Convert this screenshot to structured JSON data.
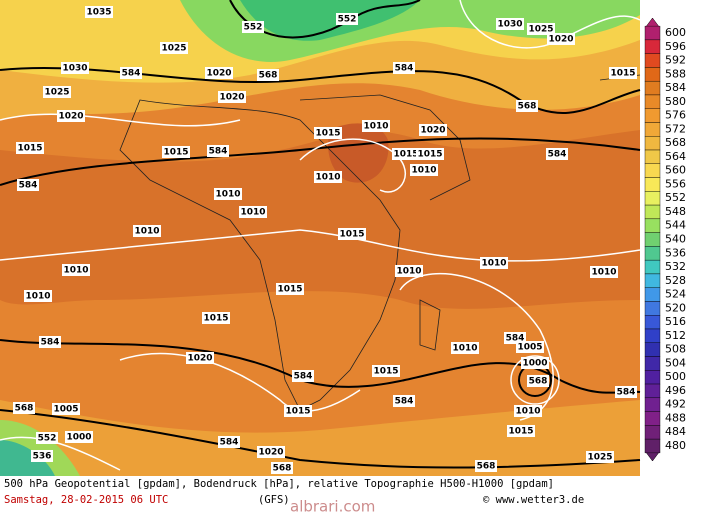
{
  "map": {
    "caption": "500 hPa Geopotential [gpdam], Bodendruck [hPa], relative Topographie H500-H1000 [gpdam]",
    "date": "Samstag, 28-02-2015  06 UTC",
    "model": "(GFS)",
    "source": "© www.wetter3.de",
    "watermark": "albrari.com",
    "colorbar": {
      "ticks": [
        600,
        596,
        592,
        588,
        584,
        580,
        576,
        572,
        568,
        564,
        560,
        556,
        552,
        548,
        544,
        540,
        536,
        532,
        528,
        524,
        520,
        516,
        512,
        508,
        504,
        500,
        496,
        492,
        488,
        484,
        480
      ],
      "colors": [
        "#b0206e",
        "#d8283a",
        "#e04a20",
        "#e06818",
        "#e07c20",
        "#e88a28",
        "#f09a30",
        "#f0a838",
        "#f0b840",
        "#f0c848",
        "#f8d850",
        "#f8e858",
        "#e8f060",
        "#c0e858",
        "#98e060",
        "#70d070",
        "#50c890",
        "#40c8c0",
        "#40b8e0",
        "#4098e8",
        "#4078e0",
        "#3858d8",
        "#3040c8",
        "#3030b0",
        "#4028a8",
        "#5020a0",
        "#602098",
        "#702090",
        "#802088",
        "#702078",
        "#602068"
      ]
    },
    "contour_labels": [
      "552",
      "552",
      "568",
      "584",
      "584",
      "1035",
      "1030",
      "1025",
      "1020",
      "1015",
      "584",
      "1015",
      "584",
      "1020",
      "1025",
      "1020",
      "1015",
      "1010",
      "1020",
      "1015",
      "1015",
      "1010",
      "1010",
      "568",
      "584",
      "1030",
      "1025",
      "1020",
      "1015",
      "1010",
      "1010",
      "1010",
      "1015",
      "1010",
      "1010",
      "1010",
      "1010",
      "1010",
      "1015",
      "1015",
      "584",
      "584",
      "1010",
      "1005",
      "1000",
      "568",
      "1020",
      "584",
      "584",
      "584",
      "568",
      "1005",
      "1015",
      "1015",
      "1010",
      "1015",
      "552",
      "536",
      "1000",
      "584",
      "1020",
      "1025",
      "568",
      "568"
    ]
  }
}
